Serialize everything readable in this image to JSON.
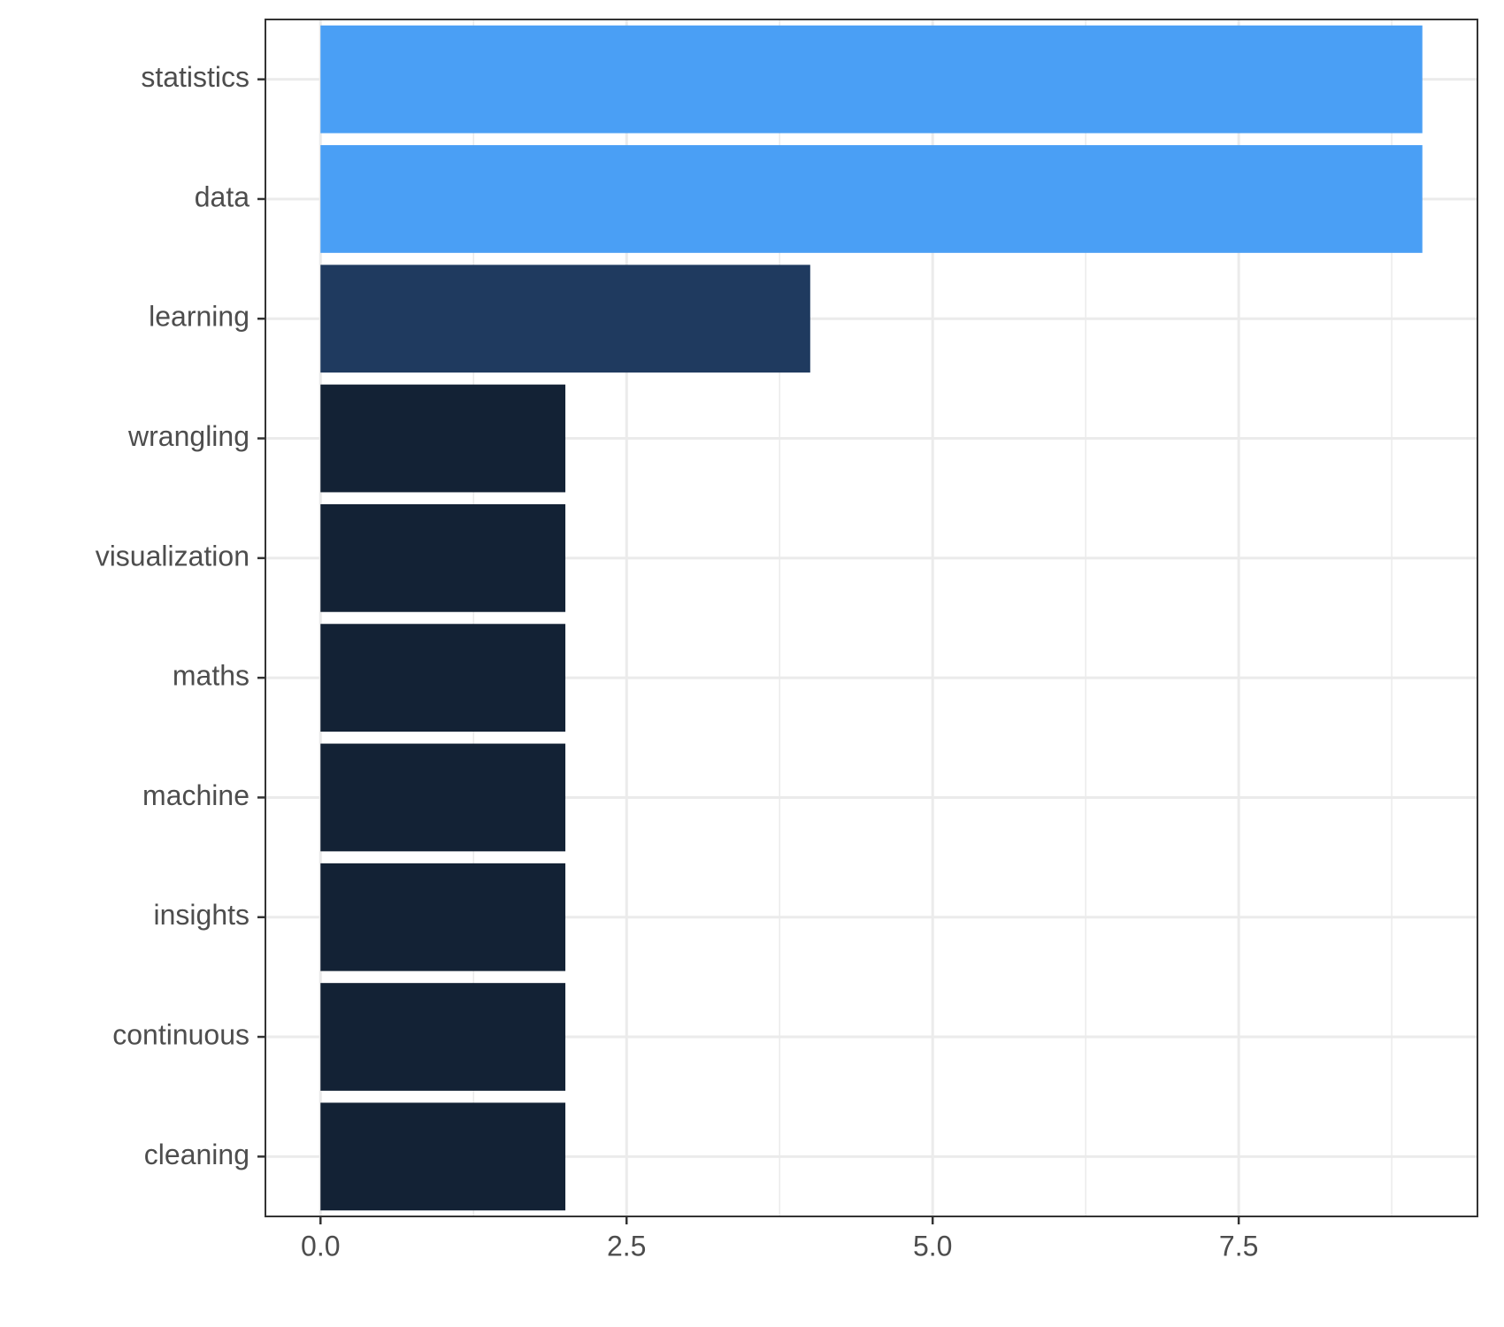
{
  "chart_data": {
    "type": "bar",
    "orientation": "horizontal",
    "categories": [
      "statistics",
      "data",
      "learning",
      "wrangling",
      "visualization",
      "maths",
      "machine",
      "insights",
      "continuous",
      "cleaning"
    ],
    "values": [
      9,
      9,
      4,
      2,
      2,
      2,
      2,
      2,
      2,
      2
    ],
    "colors": [
      "#4a9ff5",
      "#4a9ff5",
      "#1f3a5f",
      "#132235",
      "#132235",
      "#132235",
      "#132235",
      "#132235",
      "#132235",
      "#132235"
    ],
    "xlim": [
      -0.45,
      9.45
    ],
    "xticks": [
      {
        "value": 0,
        "label": "0.0"
      },
      {
        "value": 2.5,
        "label": "2.5"
      },
      {
        "value": 5,
        "label": "5.0"
      },
      {
        "value": 7.5,
        "label": "7.5"
      }
    ],
    "grid": true
  }
}
